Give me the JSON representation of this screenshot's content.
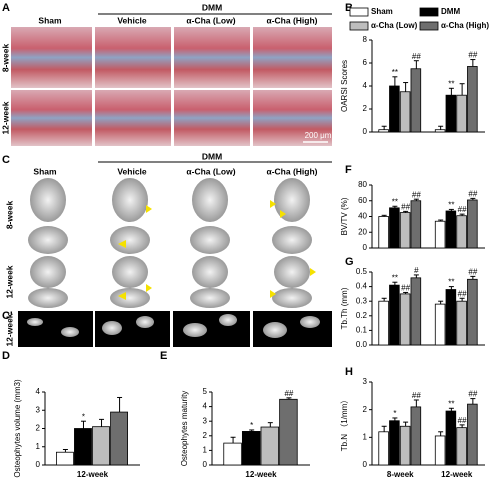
{
  "figure": {
    "panel_labels": [
      "A",
      "B",
      "C",
      "C'",
      "D",
      "E",
      "F",
      "G",
      "H"
    ],
    "A": {
      "sham": "Sham",
      "dmm": "DMM",
      "groups": [
        "Vehicle",
        "α-Cha (Low)",
        "α-Cha (High)"
      ],
      "rows": [
        "8-week",
        "12-week"
      ],
      "scale": "200 μm"
    },
    "C": {
      "sham": "Sham",
      "dmm": "DMM",
      "groups": [
        "Vehicle",
        "α-Cha (Low)",
        "α-Cha (High)"
      ],
      "rows": [
        "8-week",
        "12-week"
      ],
      "prime_row": "12-week"
    }
  },
  "chart_data": [
    {
      "type": "bar",
      "y_label": "OARSI Scores",
      "categories": [
        null,
        null
      ],
      "ylim": [
        0,
        8
      ],
      "yticks": [
        0,
        2,
        4,
        6,
        8
      ],
      "legend": true,
      "series": [
        {
          "name": "Sham",
          "color": "#ffffff",
          "values": [
            0.2,
            0.2
          ],
          "errors": [
            0.3,
            0.3
          ],
          "sig": [
            null,
            null
          ]
        },
        {
          "name": "DMM",
          "color": "#000000",
          "values": [
            4.0,
            3.2
          ],
          "errors": [
            0.8,
            0.6
          ],
          "sig": [
            "**",
            "**"
          ]
        },
        {
          "name": "α-Cha (Low)",
          "color": "#bdbdbd",
          "values": [
            3.5,
            3.2
          ],
          "errors": [
            0.8,
            1.0
          ],
          "sig": [
            null,
            null
          ]
        },
        {
          "name": "α-Cha (High)",
          "color": "#6e6e6e",
          "values": [
            5.5,
            5.7
          ],
          "errors": [
            0.7,
            0.6
          ],
          "sig": [
            "##",
            "##"
          ]
        }
      ]
    },
    {
      "type": "bar",
      "y_label": "BV/TV (%)",
      "categories": [
        null,
        null
      ],
      "ylim": [
        0,
        80
      ],
      "yticks": [
        0,
        20,
        40,
        60,
        80
      ],
      "series": [
        {
          "color": "#ffffff",
          "values": [
            40,
            34
          ],
          "errors": [
            1.5,
            1.5
          ],
          "sig": [
            null,
            null
          ]
        },
        {
          "color": "#000000",
          "values": [
            51,
            47
          ],
          "errors": [
            2,
            2
          ],
          "sig": [
            "**",
            "**"
          ]
        },
        {
          "color": "#bdbdbd",
          "values": [
            45,
            41
          ],
          "errors": [
            1.5,
            2
          ],
          "sig": [
            "##",
            "##"
          ]
        },
        {
          "color": "#6e6e6e",
          "values": [
            60,
            61
          ],
          "errors": [
            2,
            2
          ],
          "sig": [
            "##",
            "##"
          ]
        }
      ]
    },
    {
      "type": "bar",
      "y_label": "Tb.Th (mm)",
      "categories": [
        null,
        null
      ],
      "ylim": [
        0,
        0.5
      ],
      "yticks": [
        {
          "value": 0,
          "label": "0.0"
        },
        0.1,
        0.2,
        0.3,
        0.4,
        0.5
      ],
      "series": [
        {
          "color": "#ffffff",
          "values": [
            0.3,
            0.28
          ],
          "errors": [
            0.02,
            0.02
          ],
          "sig": [
            null,
            null
          ]
        },
        {
          "color": "#000000",
          "values": [
            0.41,
            0.38
          ],
          "errors": [
            0.02,
            0.02
          ],
          "sig": [
            "**",
            "**"
          ]
        },
        {
          "color": "#bdbdbd",
          "values": [
            0.35,
            0.3
          ],
          "errors": [
            0.01,
            0.02
          ],
          "sig": [
            "##",
            "##"
          ]
        },
        {
          "color": "#6e6e6e",
          "values": [
            0.46,
            0.45
          ],
          "errors": [
            0.02,
            0.02
          ],
          "sig": [
            "#",
            "##"
          ]
        }
      ]
    },
    {
      "type": "bar",
      "y_label": "Tb.N （1/mm）",
      "categories": [
        "8-week",
        "12-week"
      ],
      "ylim": [
        0,
        3
      ],
      "yticks": [
        0,
        1,
        2,
        3
      ],
      "series": [
        {
          "color": "#ffffff",
          "values": [
            1.2,
            1.05
          ],
          "errors": [
            0.2,
            0.15
          ],
          "sig": [
            null,
            null
          ]
        },
        {
          "color": "#000000",
          "values": [
            1.6,
            1.95
          ],
          "errors": [
            0.1,
            0.1
          ],
          "sig": [
            "*",
            "**"
          ]
        },
        {
          "color": "#bdbdbd",
          "values": [
            1.4,
            1.35
          ],
          "errors": [
            0.15,
            0.1
          ],
          "sig": [
            null,
            "##"
          ]
        },
        {
          "color": "#6e6e6e",
          "values": [
            2.1,
            2.2
          ],
          "errors": [
            0.25,
            0.2
          ],
          "sig": [
            "##",
            "##"
          ]
        }
      ]
    },
    {
      "type": "bar",
      "y_label": "Osteophytes volume (mm3)",
      "categories": [
        "12-week"
      ],
      "ylim": [
        0,
        4
      ],
      "yticks": [
        0,
        1,
        2,
        3,
        4
      ],
      "series": [
        {
          "color": "#ffffff",
          "values": [
            0.7
          ],
          "errors": [
            0.15
          ],
          "sig": [
            null
          ]
        },
        {
          "color": "#000000",
          "values": [
            2.0
          ],
          "errors": [
            0.4
          ],
          "sig": [
            "*"
          ]
        },
        {
          "color": "#bdbdbd",
          "values": [
            2.1
          ],
          "errors": [
            0.4
          ],
          "sig": [
            null
          ]
        },
        {
          "color": "#6e6e6e",
          "values": [
            2.9
          ],
          "errors": [
            0.8
          ],
          "sig": [
            null
          ]
        }
      ]
    },
    {
      "type": "bar",
      "y_label": "Osteophytes maturity",
      "categories": [
        "12-week"
      ],
      "ylim": [
        0,
        5
      ],
      "yticks": [
        0,
        1,
        2,
        3,
        4,
        5
      ],
      "series": [
        {
          "color": "#ffffff",
          "values": [
            1.5
          ],
          "errors": [
            0.4
          ],
          "sig": [
            null
          ]
        },
        {
          "color": "#000000",
          "values": [
            2.3
          ],
          "errors": [
            0.1
          ],
          "sig": [
            "*"
          ]
        },
        {
          "color": "#bdbdbd",
          "values": [
            2.6
          ],
          "errors": [
            0.3
          ],
          "sig": [
            null
          ]
        },
        {
          "color": "#6e6e6e",
          "values": [
            4.5
          ],
          "errors": [
            0.1
          ],
          "sig": [
            "##"
          ]
        }
      ]
    }
  ]
}
